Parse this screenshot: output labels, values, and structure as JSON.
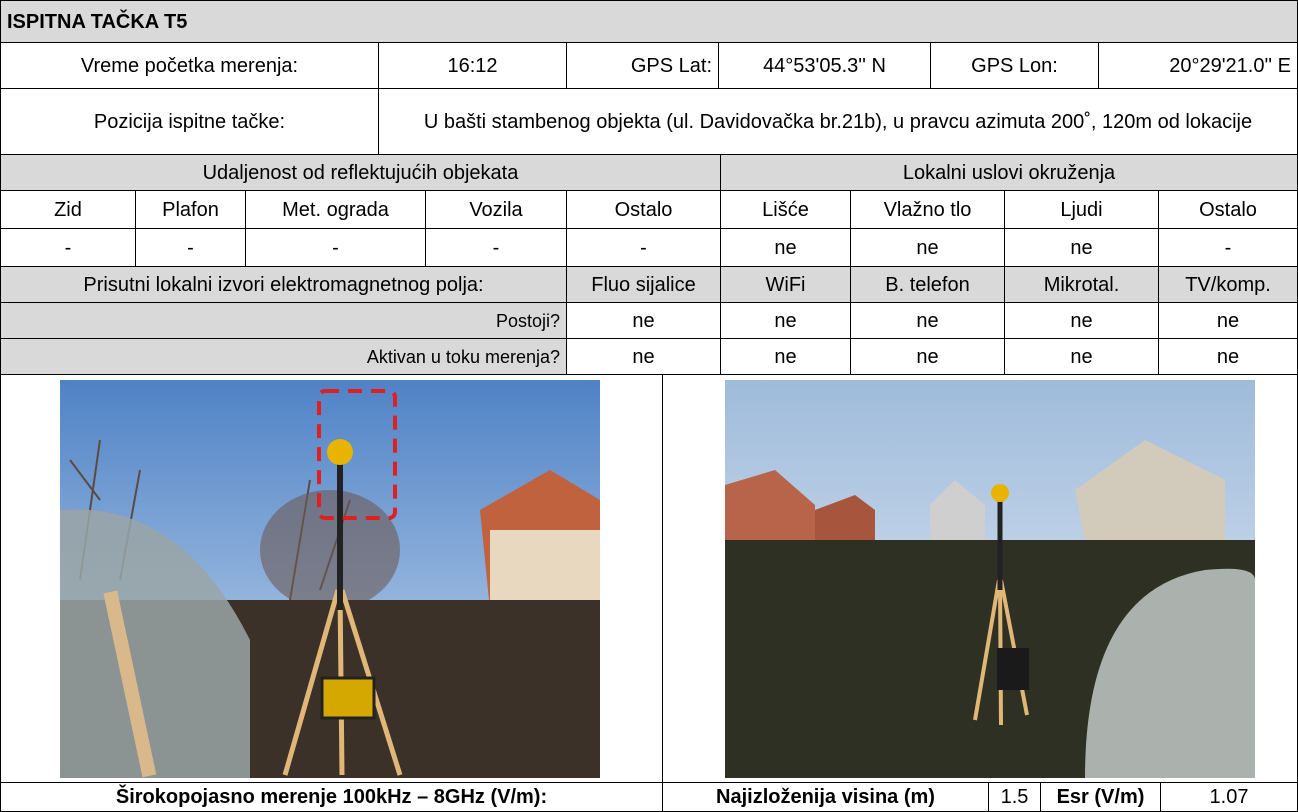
{
  "title": "ISPITNA TAČKA T5",
  "info": {
    "start_label": "Vreme početka merenja:",
    "start": "16:12",
    "lat_label": "GPS Lat:",
    "lat": "44°53'05.3'' N",
    "lon_label": "GPS Lon:",
    "lon": "20°29'21.0'' E",
    "position_label": "Pozicija ispitne tačke:",
    "position": "U bašti stambenog objekta (ul. Davidovačka br.21b), u pravcu azimuta 200˚, 120m od lokacije"
  },
  "reflective": {
    "header": "Udaljenost od reflektujućih objekata",
    "columns": [
      "Zid",
      "Plafon",
      "Met. ograda",
      "Vozila",
      "Ostalo"
    ],
    "values": [
      "-",
      "-",
      "-",
      "-",
      "-"
    ]
  },
  "environment": {
    "header": "Lokalni uslovi okruženja",
    "columns": [
      "Lišće",
      "Vlažno tlo",
      "Ljudi",
      "Ostalo"
    ],
    "values": [
      "ne",
      "ne",
      "ne",
      "-"
    ]
  },
  "sources": {
    "header": "Prisutni lokalni izvori elektromagnetnog polja:",
    "columns": [
      "Fluo sijalice",
      "WiFi",
      "B. telefon",
      "Mikrotal.",
      "TV/komp."
    ],
    "rows": [
      {
        "label": "Postoji?",
        "values": [
          "ne",
          "ne",
          "ne",
          "ne",
          "ne"
        ]
      },
      {
        "label": "Aktivan u toku merenja?",
        "values": [
          "ne",
          "ne",
          "ne",
          "ne",
          "ne"
        ]
      }
    ]
  },
  "measurement": {
    "label": "Širokopojasno merenje 100kHz – 8GHz (V/m):",
    "height_label": "Najizloženija visina (m)",
    "height": 1.5,
    "esr_label": "Esr (V/m)",
    "esr": 1.07
  }
}
